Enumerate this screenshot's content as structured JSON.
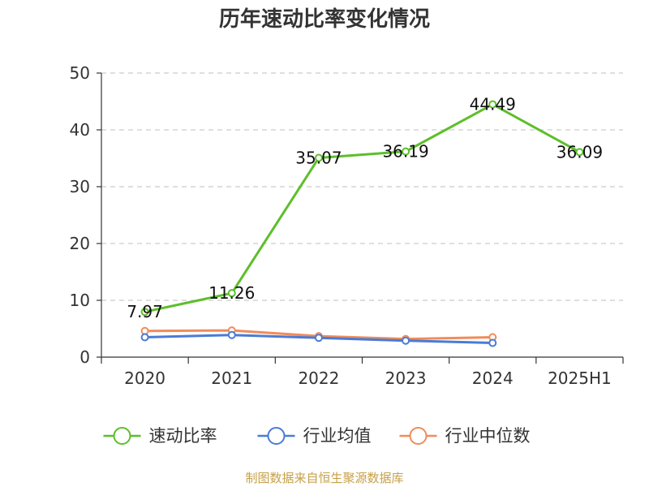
{
  "chart_data": {
    "type": "line",
    "title": "历年速动比率变化情况",
    "categories": [
      "2020",
      "2021",
      "2022",
      "2023",
      "2024",
      "2025H1"
    ],
    "ylim": [
      0,
      50
    ],
    "yticks": [
      0,
      10,
      20,
      30,
      40,
      50
    ],
    "grid": true,
    "legend_position": "bottom",
    "series": [
      {
        "name": "速动比率",
        "color": "#5cbf2a",
        "values": [
          7.97,
          11.26,
          35.07,
          36.19,
          44.49,
          36.09
        ],
        "show_labels": true
      },
      {
        "name": "行业均值",
        "color": "#4a7bd6",
        "values": [
          3.5,
          3.9,
          3.4,
          2.9,
          2.5,
          null
        ],
        "show_labels": false
      },
      {
        "name": "行业中位数",
        "color": "#f08c5a",
        "values": [
          4.6,
          4.7,
          3.7,
          3.2,
          3.5,
          null
        ],
        "show_labels": false
      }
    ]
  },
  "source": "制图数据来自恒生聚源数据库"
}
